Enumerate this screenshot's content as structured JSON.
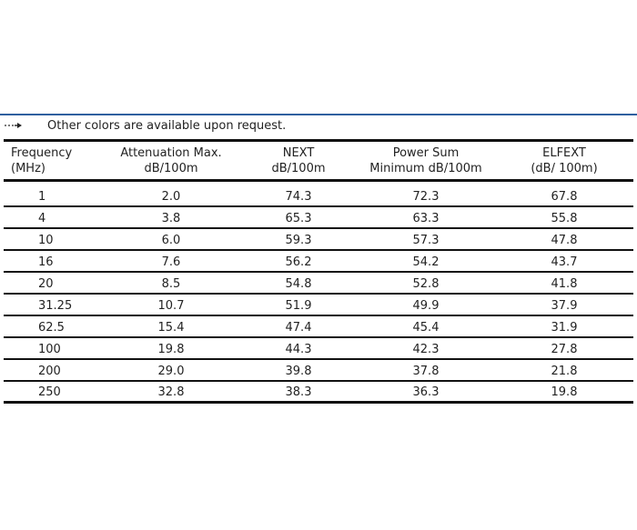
{
  "note": {
    "icon": "arrow-right-icon",
    "text": "Other colors are available upon request."
  },
  "table": {
    "headers": [
      [
        "Frequency",
        "(MHz)"
      ],
      [
        "Attenuation Max.",
        "dB/100m"
      ],
      [
        "NEXT",
        "dB/100m"
      ],
      [
        "Power Sum",
        "Minimum dB/100m"
      ],
      [
        "ELFEXT",
        "(dB/ 100m)"
      ]
    ],
    "rows": [
      [
        "1",
        "2.0",
        "74.3",
        "72.3",
        "67.8"
      ],
      [
        "4",
        "3.8",
        "65.3",
        "63.3",
        "55.8"
      ],
      [
        "10",
        "6.0",
        "59.3",
        "57.3",
        "47.8"
      ],
      [
        "16",
        "7.6",
        "56.2",
        "54.2",
        "43.7"
      ],
      [
        "20",
        "8.5",
        "54.8",
        "52.8",
        "41.8"
      ],
      [
        "31.25",
        "10.7",
        "51.9",
        "49.9",
        "37.9"
      ],
      [
        "62.5",
        "15.4",
        "47.4",
        "45.4",
        "31.9"
      ],
      [
        "100",
        "19.8",
        "44.3",
        "42.3",
        "27.8"
      ],
      [
        "200",
        "29.0",
        "39.8",
        "37.8",
        "21.8"
      ],
      [
        "250",
        "32.8",
        "38.3",
        "36.3",
        "19.8"
      ]
    ]
  },
  "colors": {
    "rule_accent": "#2f5f9f",
    "table_lines": "#111111",
    "text": "#222222"
  }
}
